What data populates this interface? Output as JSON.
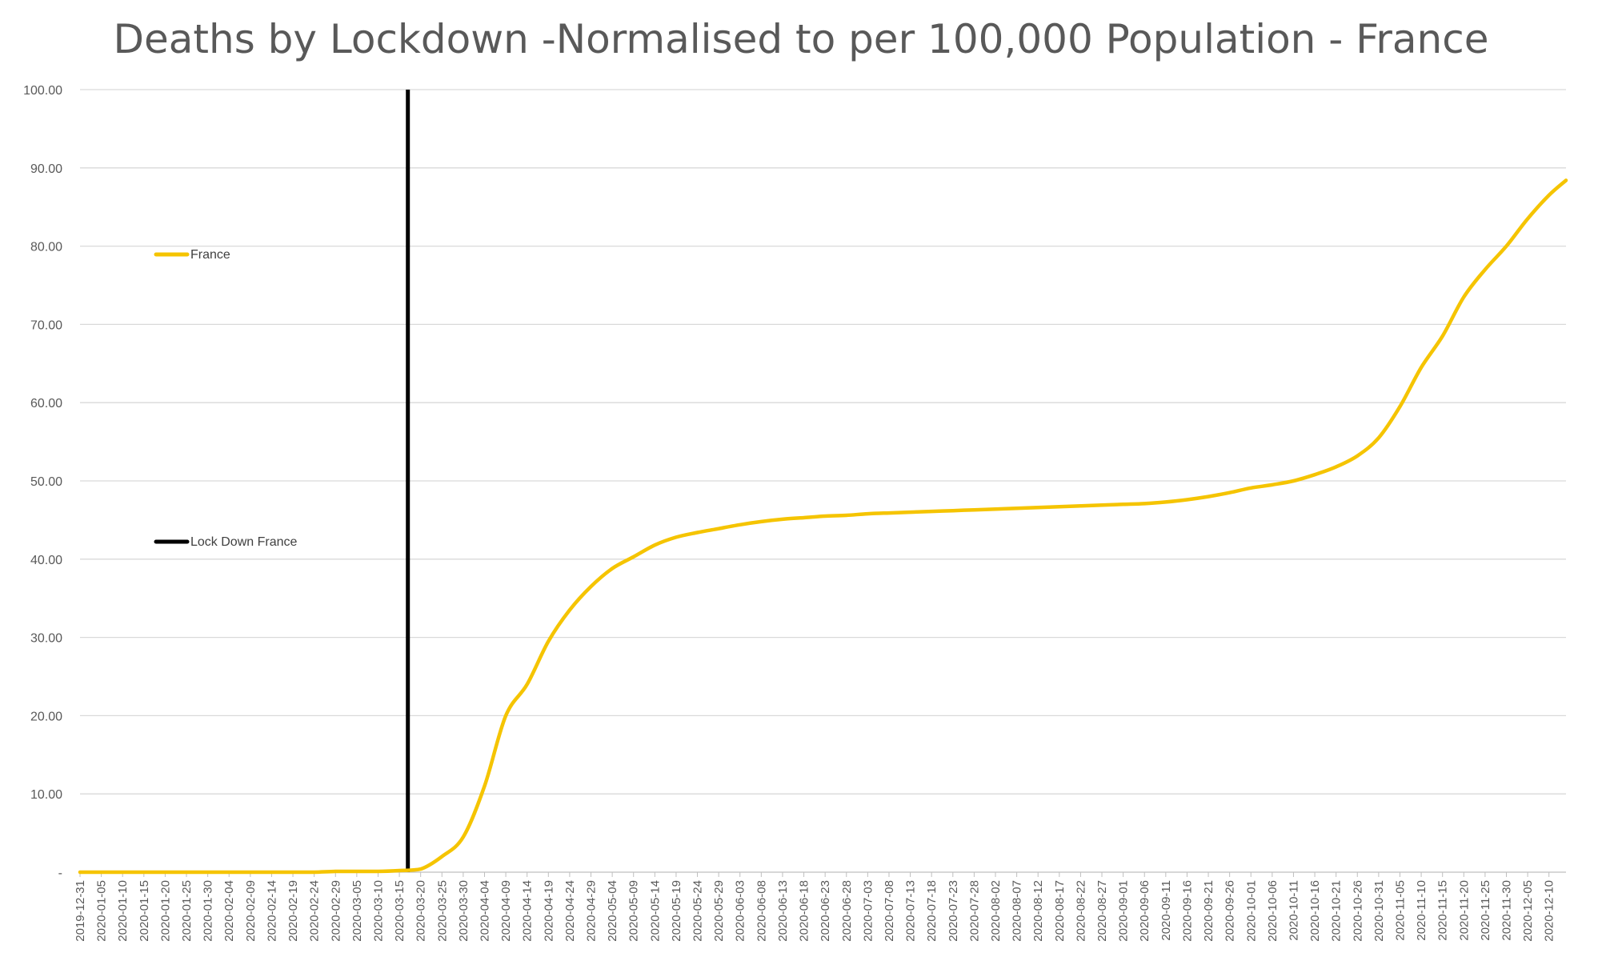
{
  "chart_data": {
    "type": "line",
    "title": "Deaths by Lockdown -Normalised to per 100,000 Population - France",
    "xlabel": "",
    "ylabel": "",
    "ylim": [
      0,
      100
    ],
    "y_ticks": [
      "-",
      "10.00",
      "20.00",
      "30.00",
      "40.00",
      "50.00",
      "60.00",
      "70.00",
      "80.00",
      "90.00",
      "100.00"
    ],
    "grid": true,
    "legend_position": "left",
    "x": [
      "2019-12-31",
      "2020-01-05",
      "2020-01-10",
      "2020-01-15",
      "2020-01-20",
      "2020-01-25",
      "2020-01-30",
      "2020-02-04",
      "2020-02-09",
      "2020-02-14",
      "2020-02-19",
      "2020-02-24",
      "2020-02-29",
      "2020-03-05",
      "2020-03-10",
      "2020-03-15",
      "2020-03-20",
      "2020-03-25",
      "2020-03-30",
      "2020-04-04",
      "2020-04-09",
      "2020-04-14",
      "2020-04-19",
      "2020-04-24",
      "2020-04-29",
      "2020-05-04",
      "2020-05-09",
      "2020-05-14",
      "2020-05-19",
      "2020-05-24",
      "2020-05-29",
      "2020-06-03",
      "2020-06-08",
      "2020-06-13",
      "2020-06-18",
      "2020-06-23",
      "2020-06-28",
      "2020-07-03",
      "2020-07-08",
      "2020-07-13",
      "2020-07-18",
      "2020-07-23",
      "2020-07-28",
      "2020-08-02",
      "2020-08-07",
      "2020-08-12",
      "2020-08-17",
      "2020-08-22",
      "2020-08-27",
      "2020-09-01",
      "2020-09-06",
      "2020-09-11",
      "2020-09-16",
      "2020-09-21",
      "2020-09-26",
      "2020-10-01",
      "2020-10-06",
      "2020-10-11",
      "2020-10-16",
      "2020-10-21",
      "2020-10-26",
      "2020-10-31",
      "2020-11-05",
      "2020-11-10",
      "2020-11-15",
      "2020-11-20",
      "2020-11-25",
      "2020-11-30",
      "2020-12-05",
      "2020-12-10",
      "2020-12-14"
    ],
    "x_tick_labels": [
      "2019-12-31",
      "2020-01-05",
      "2020-01-10",
      "2020-01-15",
      "2020-01-20",
      "2020-01-25",
      "2020-01-30",
      "2020-02-04",
      "2020-02-09",
      "2020-02-14",
      "2020-02-19",
      "2020-02-24",
      "2020-02-29",
      "2020-03-05",
      "2020-03-10",
      "2020-03-15",
      "2020-03-20",
      "2020-03-25",
      "2020-03-30",
      "2020-04-04",
      "2020-04-09",
      "2020-04-14",
      "2020-04-19",
      "2020-04-24",
      "2020-04-29",
      "2020-05-04",
      "2020-05-09",
      "2020-05-14",
      "2020-05-19",
      "2020-05-24",
      "2020-05-29",
      "2020-06-03",
      "2020-06-08",
      "2020-06-13",
      "2020-06-18",
      "2020-06-23",
      "2020-06-28",
      "2020-07-03",
      "2020-07-08",
      "2020-07-13",
      "2020-07-18",
      "2020-07-23",
      "2020-07-28",
      "2020-08-02",
      "2020-08-07",
      "2020-08-12",
      "2020-08-17",
      "2020-08-22",
      "2020-08-27",
      "2020-09-01",
      "2020-09-06",
      "2020-09-11",
      "2020-09-16",
      "2020-09-21",
      "2020-09-26",
      "2020-10-01",
      "2020-10-06",
      "2020-10-11",
      "2020-10-16",
      "2020-10-21",
      "2020-10-26",
      "2020-10-31",
      "2020-11-05",
      "2020-11-10",
      "2020-11-15",
      "2020-11-20",
      "2020-11-25",
      "2020-11-30",
      "2020-12-05",
      "2020-12-10"
    ],
    "series": [
      {
        "name": "France",
        "color": "#f5c400",
        "values": [
          0.0,
          0.0,
          0.0,
          0.0,
          0.0,
          0.0,
          0.0,
          0.0,
          0.0,
          0.0,
          0.0,
          0.0,
          0.1,
          0.1,
          0.1,
          0.2,
          0.4,
          2.0,
          4.5,
          11.0,
          20.0,
          24.0,
          29.5,
          33.5,
          36.5,
          38.8,
          40.3,
          41.8,
          42.8,
          43.4,
          43.9,
          44.4,
          44.8,
          45.1,
          45.3,
          45.5,
          45.6,
          45.8,
          45.9,
          46.0,
          46.1,
          46.2,
          46.3,
          46.4,
          46.5,
          46.6,
          46.7,
          46.8,
          46.9,
          47.0,
          47.1,
          47.3,
          47.6,
          48.0,
          48.5,
          49.1,
          49.5,
          50.0,
          50.8,
          51.8,
          53.2,
          55.5,
          59.5,
          64.5,
          68.5,
          73.5,
          77.0,
          80.0,
          83.5,
          86.5,
          88.4
        ]
      }
    ],
    "lockdown": {
      "name": "Lock Down France",
      "x": "2020-03-17",
      "color": "#000000"
    }
  }
}
